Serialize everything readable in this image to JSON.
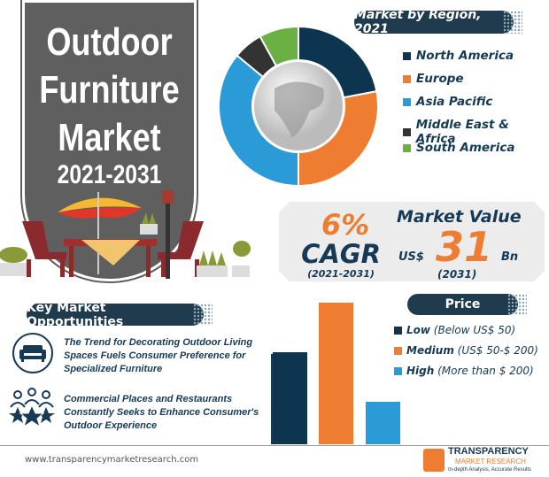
{
  "header": {
    "title_lines": [
      "Outdoor",
      "Furniture",
      "Market"
    ],
    "years": "2021-2031"
  },
  "region": {
    "heading": "Market by Region, 2021"
  },
  "cagr": {
    "value": "6%",
    "label": "CAGR",
    "period": "(2021-2031)"
  },
  "market_value": {
    "heading": "Market Value",
    "currency": "US$",
    "value": "31",
    "unit": "Bn",
    "year": "(2031)"
  },
  "price": {
    "heading": "Price",
    "items": [
      {
        "bold": "Low",
        "rest": " (Below US$ 50)"
      },
      {
        "bold": "Medium",
        "rest": " (US$ 50-$ 200)"
      },
      {
        "bold": "High",
        "rest": " (More than $ 200)"
      }
    ]
  },
  "opportunities": {
    "heading": "Key Market Opportunities",
    "items": [
      {
        "icon": "sofa-icon",
        "text": "The Trend for Decorating Outdoor Living Spaces Fuels Consumer Preference for Specialized Furniture"
      },
      {
        "icon": "people-stars-icon",
        "text": "Commercial Places and Restaurants Constantly Seeks to Enhance Consumer's Outdoor Experience"
      }
    ]
  },
  "footer": {
    "url": "www.transparencymarketresearch.com",
    "logo_lines": [
      "TRANSPARENCY",
      "MARKET RESEARCH",
      "In-depth Analysis, Accurate Results"
    ]
  },
  "chart_data": [
    {
      "type": "pie",
      "donut": true,
      "title": "Market by Region, 2021",
      "categories": [
        "North America",
        "Europe",
        "Asia Pacific",
        "Middle East & Africa",
        "South America"
      ],
      "values": [
        22,
        28,
        36,
        6,
        8
      ],
      "colors": [
        "#0d3550",
        "#ee7d31",
        "#2a9bd6",
        "#333333",
        "#6ab043"
      ],
      "legend": "right"
    },
    {
      "type": "bar",
      "title": "Price",
      "categories": [
        "Low (Below US$ 50)",
        "Medium (US$ 50-$ 200)",
        "High (More than $ 200)"
      ],
      "values": [
        65,
        100,
        30
      ],
      "ylim": [
        0,
        100
      ],
      "colors": [
        "#0d3550",
        "#ee7d31",
        "#2a9bd6"
      ],
      "axes": false,
      "grid": false,
      "legend": "right"
    }
  ]
}
